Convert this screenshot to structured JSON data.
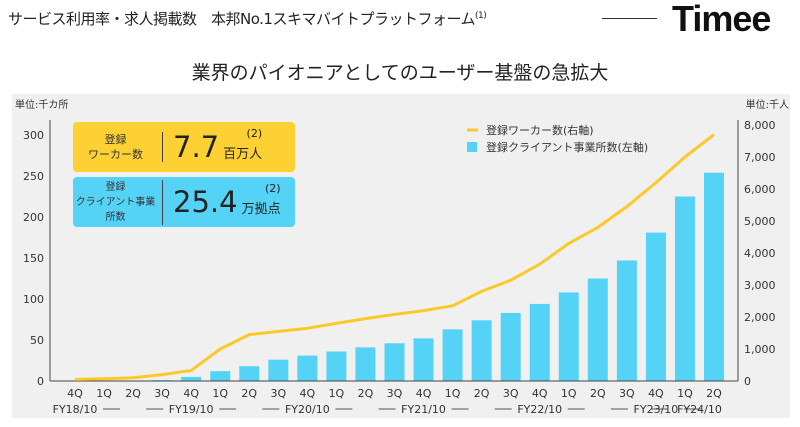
{
  "header": {
    "text": "サービス利用率・求人掲載数　本邦No.1スキマバイトプラットフォーム",
    "note": "(1)",
    "logo": "Timee"
  },
  "title": "業界のパイオニアとしてのユーザー基盤の急拡大",
  "kpis": [
    {
      "label1": "登録",
      "label2": "ワーカー数",
      "value": "7.7",
      "unit": "百万人",
      "note": "(2)",
      "color": "#fdd033"
    },
    {
      "label1": "登録",
      "label2": "クライアント事業所数",
      "value": "25.4",
      "unit": "万拠点",
      "note": "(2)",
      "color": "#55d3f7"
    }
  ],
  "chart_data": {
    "type": "bar+line",
    "title": "業界のパイオニアとしてのユーザー基盤の急拡大",
    "categories": [
      "4Q",
      "1Q",
      "2Q",
      "3Q",
      "4Q",
      "1Q",
      "2Q",
      "3Q",
      "4Q",
      "1Q",
      "2Q",
      "3Q",
      "4Q",
      "1Q",
      "2Q",
      "3Q",
      "4Q",
      "1Q",
      "2Q",
      "3Q",
      "4Q",
      "1Q",
      "2Q"
    ],
    "fiscal_years": [
      "FY18/10",
      "FY19/10",
      "FY20/10",
      "FY21/10",
      "FY22/10",
      "FY23/10",
      "FY24/10"
    ],
    "series": [
      {
        "name": "登録クライアント事業所数(左軸)",
        "type": "bar",
        "axis": "left",
        "color": "#55d3f7",
        "values": [
          0,
          0,
          0.5,
          1,
          5,
          12,
          18,
          26,
          31,
          36,
          41,
          46,
          52,
          63,
          74,
          83,
          94,
          108,
          125,
          147,
          181,
          225,
          254
        ]
      },
      {
        "name": "登録ワーカー数(右軸)",
        "type": "line",
        "axis": "right",
        "color": "#fdc82a",
        "values": [
          50,
          70,
          100,
          200,
          330,
          1000,
          1450,
          1550,
          1650,
          1800,
          1950,
          2080,
          2200,
          2350,
          2800,
          3150,
          3650,
          4300,
          4800,
          5450,
          6200,
          7000,
          7700
        ]
      }
    ],
    "left_axis": {
      "unit": "単位:千カ所",
      "ylim": [
        0,
        300
      ],
      "ticks": [
        0,
        50,
        100,
        150,
        200,
        250,
        300
      ]
    },
    "right_axis": {
      "unit": "単位:千人",
      "ylim": [
        0,
        8000
      ],
      "ticks": [
        "0",
        "1,000",
        "2,000",
        "3,000",
        "4,000",
        "5,000",
        "6,000",
        "7,000",
        "8,000"
      ]
    },
    "legend_position": "top-right"
  }
}
